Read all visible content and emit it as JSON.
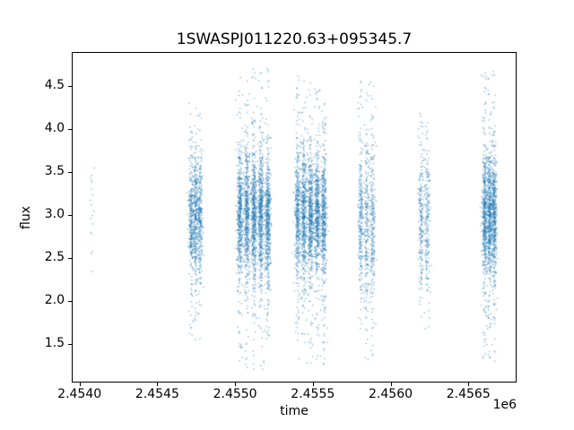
{
  "title": "1SWASPJ011220.63+095345.7",
  "chart_data": {
    "type": "scatter",
    "title": "1SWASPJ011220.63+095345.7",
    "xlabel": "time",
    "ylabel": "flux",
    "x_offset_label": "1e6",
    "xlim": [
      2453950,
      2456810
    ],
    "ylim": [
      1.05,
      4.9
    ],
    "xticks": [
      2454000,
      2454500,
      2455000,
      2455500,
      2456000,
      2456500
    ],
    "xtick_labels": [
      "2.4540",
      "2.4545",
      "2.4550",
      "2.4555",
      "2.4560",
      "2.4565"
    ],
    "yticks": [
      1.5,
      2.0,
      2.5,
      3.0,
      3.5,
      4.0,
      4.5
    ],
    "ytick_labels": [
      "1.5",
      "2.0",
      "2.5",
      "3.0",
      "3.5",
      "4.0",
      "4.5"
    ],
    "grid": false,
    "legend": "none",
    "point_color": "#1f77b4",
    "point_alpha": 0.5,
    "point_size": 1.4,
    "clusters": [
      {
        "n": 18,
        "x_center": 2454075,
        "bands": 1,
        "band_gap": 0,
        "band_sd": 6,
        "flux_center": 3.0,
        "flux_sd": 0.42,
        "flux_min": 2.25,
        "flux_max": 3.65
      },
      {
        "n": 950,
        "x_center": 2454740,
        "bands": 3,
        "band_gap": 28,
        "band_sd": 8,
        "flux_center": 3.0,
        "flux_sd": 0.34,
        "flux_min": 1.45,
        "flux_max": 4.35
      },
      {
        "n": 2700,
        "x_center": 2455115,
        "bands": 5,
        "band_gap": 45,
        "band_sd": 9,
        "flux_center": 3.0,
        "flux_sd": 0.36,
        "flux_min": 1.2,
        "flux_max": 4.72
      },
      {
        "n": 2500,
        "x_center": 2455480,
        "bands": 5,
        "band_gap": 42,
        "band_sd": 9,
        "flux_center": 3.0,
        "flux_sd": 0.36,
        "flux_min": 1.25,
        "flux_max": 4.72
      },
      {
        "n": 750,
        "x_center": 2455840,
        "bands": 3,
        "band_gap": 38,
        "band_sd": 8,
        "flux_center": 2.95,
        "flux_sd": 0.45,
        "flux_min": 1.3,
        "flux_max": 4.62
      },
      {
        "n": 420,
        "x_center": 2456210,
        "bands": 2,
        "band_gap": 40,
        "band_sd": 9,
        "flux_center": 2.95,
        "flux_sd": 0.45,
        "flux_min": 1.6,
        "flux_max": 4.2
      },
      {
        "n": 1500,
        "x_center": 2456630,
        "bands": 3,
        "band_gap": 30,
        "band_sd": 8,
        "flux_center": 3.0,
        "flux_sd": 0.36,
        "flux_min": 1.3,
        "flux_max": 4.7
      }
    ]
  }
}
